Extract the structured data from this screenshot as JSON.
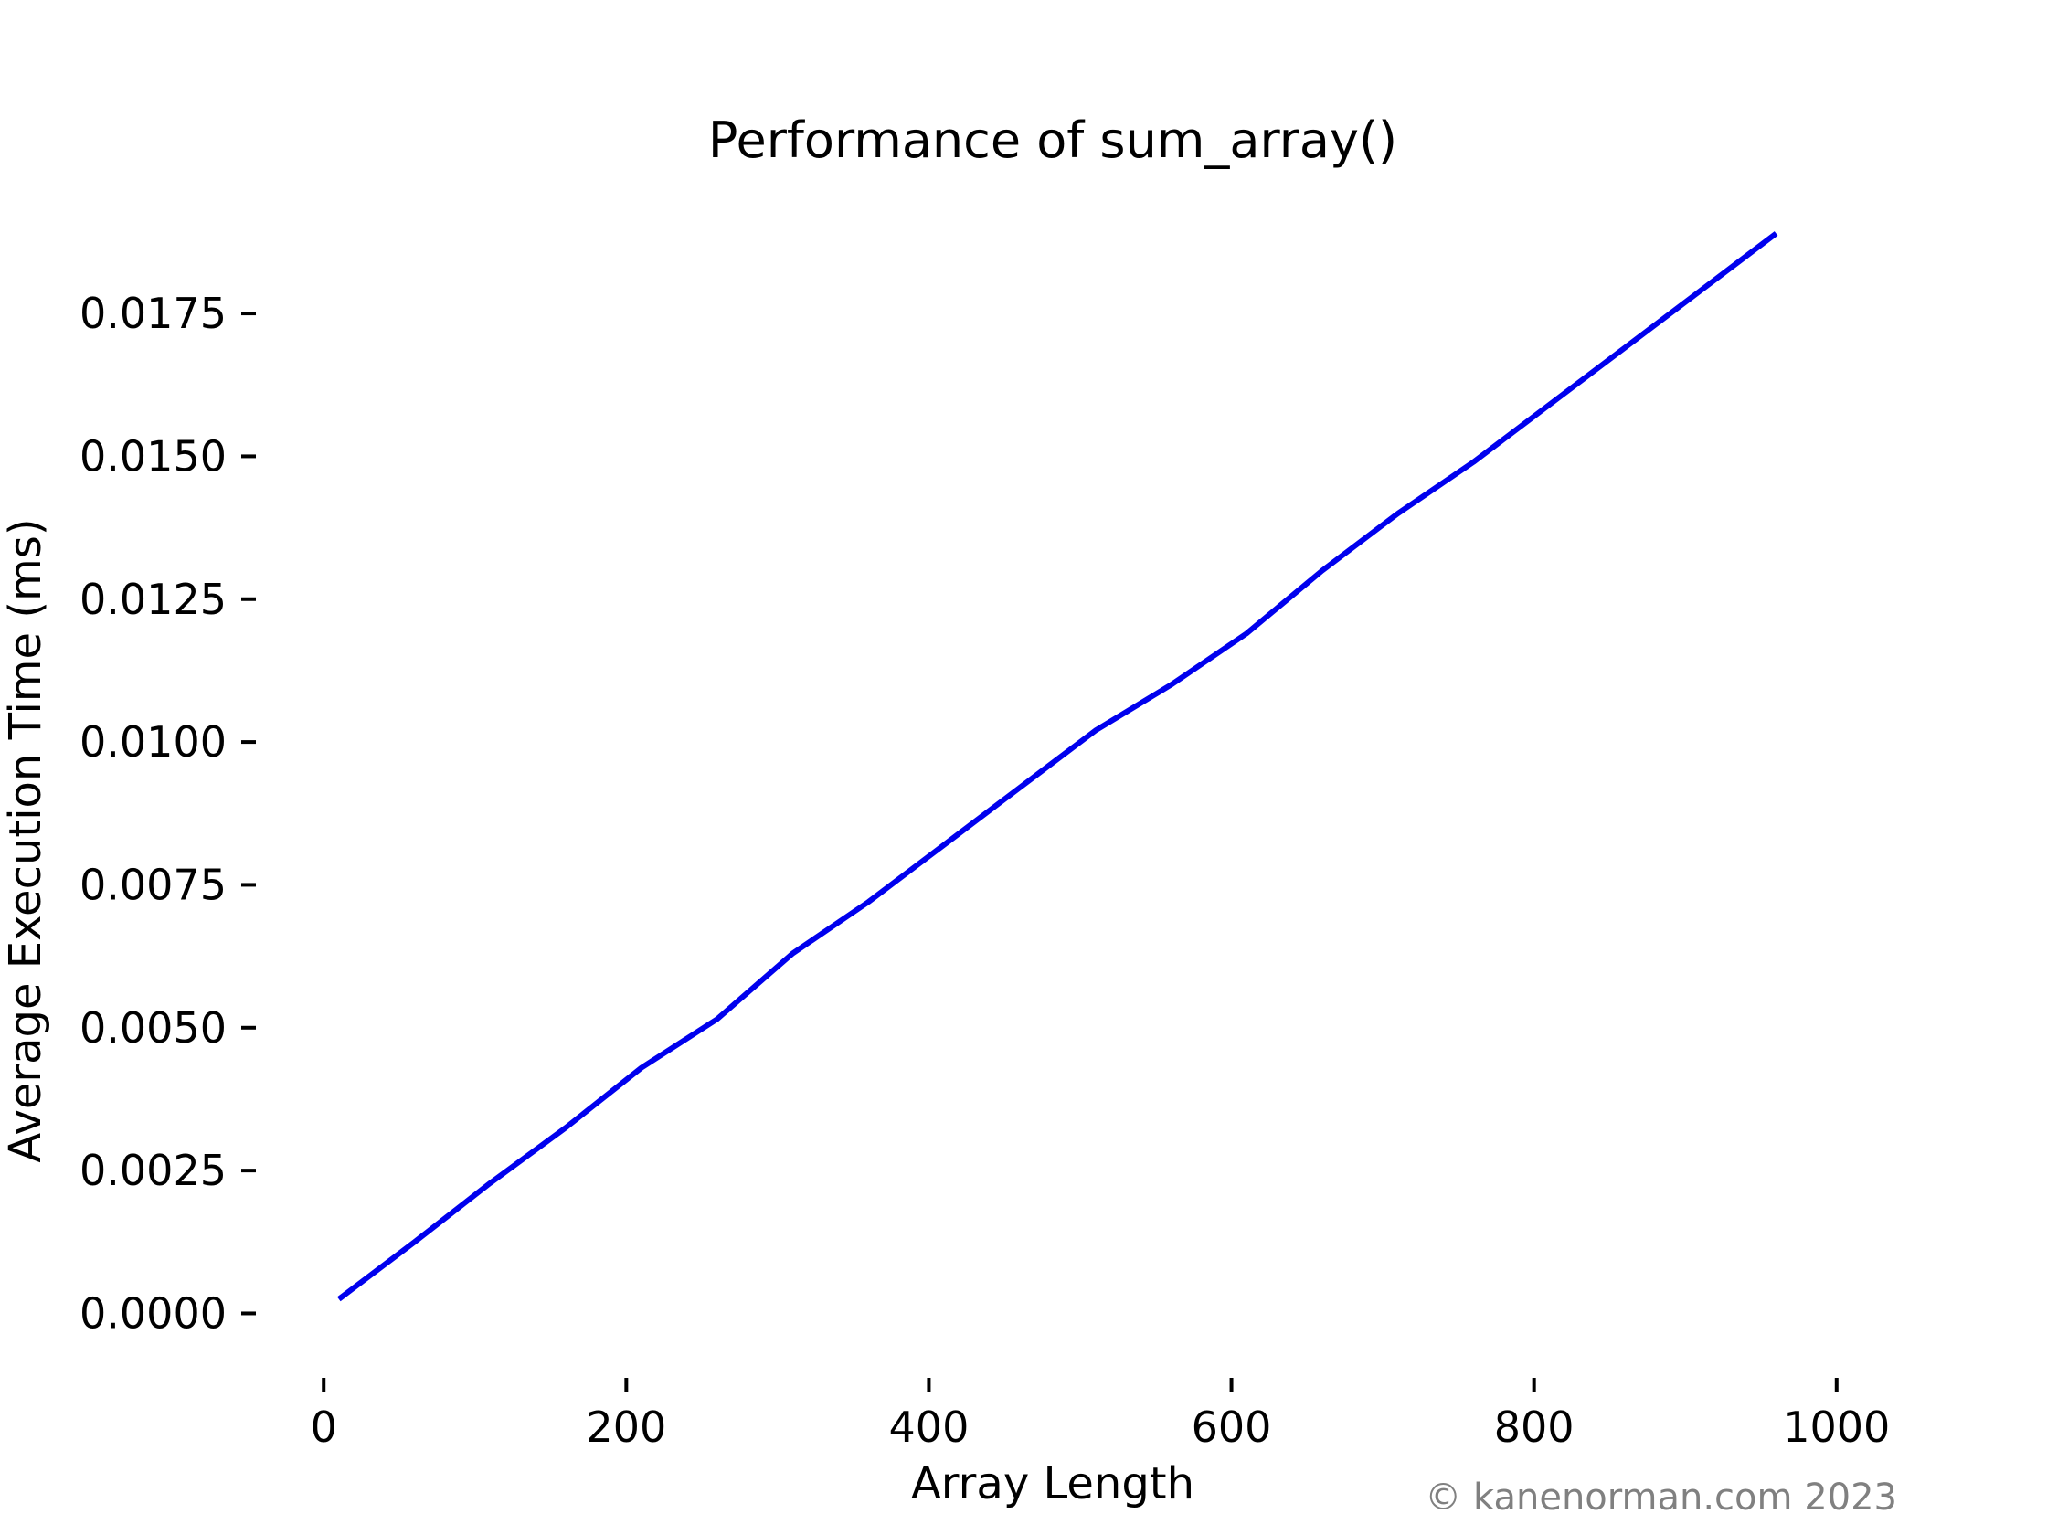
{
  "chart_data": {
    "type": "line",
    "title": "Performance of sum_array()",
    "xlabel": "Array Length",
    "ylabel": "Average Execution Time (ms)",
    "xlim": [
      -40,
      1040
    ],
    "ylim": [
      -0.001,
      0.0195
    ],
    "xticks": [
      0,
      200,
      400,
      600,
      800,
      1000
    ],
    "xtick_labels": [
      "0",
      "200",
      "400",
      "600",
      "800",
      "1000"
    ],
    "yticks": [
      0.0,
      0.0025,
      0.005,
      0.0075,
      0.01,
      0.0125,
      0.015,
      0.0175
    ],
    "ytick_labels": [
      "0.0000",
      "0.0025",
      "0.0050",
      "0.0075",
      "0.0100",
      "0.0125",
      "0.0150",
      "0.0175"
    ],
    "grid": false,
    "spines": false,
    "series": [
      {
        "color": "#0000ee",
        "x": [
          10,
          60,
          110,
          160,
          210,
          260,
          310,
          360,
          410,
          460,
          510,
          560,
          610,
          660,
          710,
          760,
          810,
          860,
          910,
          960
        ],
        "y": [
          0.00025,
          0.00125,
          0.00228,
          0.00325,
          0.0043,
          0.00515,
          0.0063,
          0.0072,
          0.0082,
          0.0092,
          0.0102,
          0.011,
          0.0119,
          0.013,
          0.014,
          0.0149,
          0.0159,
          0.0169,
          0.0179,
          0.0189
        ]
      }
    ]
  },
  "watermark": "© kanenorman.com 2023"
}
